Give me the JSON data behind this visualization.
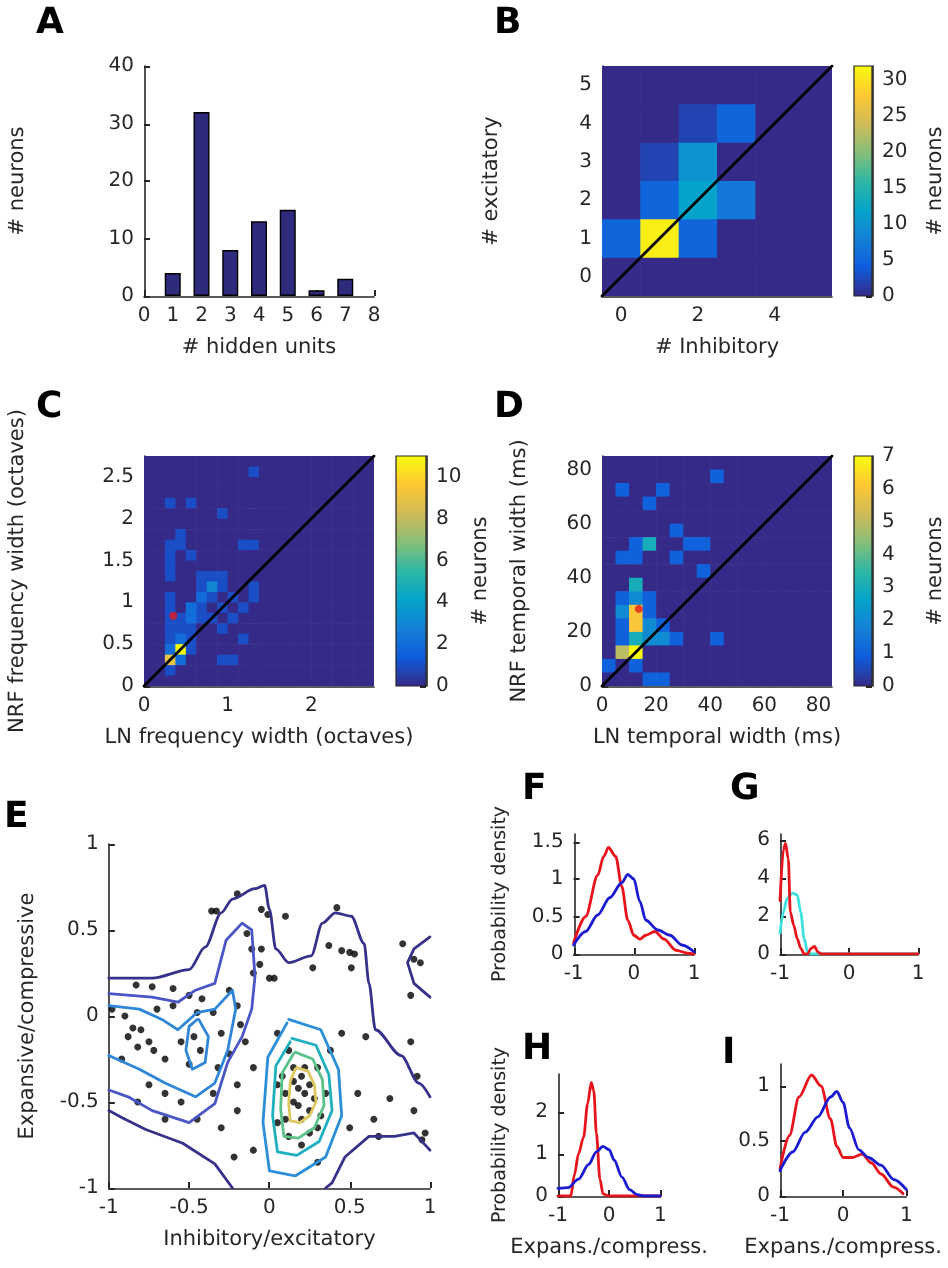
{
  "chart_data": [
    {
      "type": "bar",
      "title": "A",
      "xlabel": "# hidden units",
      "ylabel": "# neurons",
      "x": [
        1,
        2,
        3,
        4,
        5,
        6,
        7
      ],
      "values": [
        4,
        32,
        8,
        13,
        15,
        1,
        3
      ],
      "color": "#2e2b7d",
      "xlim": [
        0,
        8
      ],
      "xticks": [
        0,
        1,
        2,
        3,
        4,
        5,
        6,
        7,
        8
      ],
      "ylim": [
        0,
        40
      ],
      "yticks": [
        0,
        10,
        20,
        30,
        40
      ]
    },
    {
      "type": "heatmap",
      "title": "B",
      "xlabel": "# Inhibitory",
      "ylabel": "# excitatory",
      "clabel": "# neurons",
      "x": [
        0,
        1,
        2,
        3,
        4,
        5
      ],
      "xlim": [
        -0.5,
        5.5
      ],
      "xticks": [
        0,
        2,
        4
      ],
      "ylim": [
        -0.5,
        5.5
      ],
      "yticks": [
        0,
        1,
        2,
        3,
        4,
        5
      ],
      "clim": [
        0,
        32
      ],
      "cticks": [
        0,
        5,
        10,
        15,
        20,
        25,
        30
      ],
      "cells": [
        [
          0,
          0,
          0,
          0,
          0,
          0
        ],
        [
          0,
          0,
          2,
          5,
          0,
          0
        ],
        [
          0,
          2,
          10,
          0,
          0,
          0
        ],
        [
          0,
          5,
          12,
          7,
          0,
          0
        ],
        [
          5,
          31,
          5,
          0,
          0,
          0
        ],
        [
          0,
          0,
          0,
          0,
          0,
          0
        ]
      ],
      "series": [
        {
          "type": "line",
          "marker": "none",
          "color": "#000000",
          "x": [
            -0.5,
            5.5
          ],
          "values": [
            -0.5,
            5.5
          ]
        }
      ]
    },
    {
      "type": "heatmap",
      "title": "C",
      "xlabel": "LN frequency width (octaves)",
      "ylabel": "NRF frequency width (octaves)",
      "clabel": "# neurons",
      "x": [
        0.0625,
        0.1875,
        0.3125,
        0.4375,
        0.5625,
        0.6875,
        0.8125,
        0.9375,
        1.0625,
        1.1875,
        1.3125,
        1.4375,
        1.5625,
        1.6875,
        1.8125,
        1.9375,
        2.0625,
        2.1875,
        2.3125,
        2.4375,
        2.5625,
        2.6875
      ],
      "xlim": [
        0,
        2.75
      ],
      "xticks": [
        0,
        1,
        2
      ],
      "ylim": [
        0,
        2.75
      ],
      "yticks": [
        0,
        0.5,
        1,
        1.5,
        2,
        2.5
      ],
      "clim": [
        0,
        11
      ],
      "cticks": [
        0,
        2,
        4,
        6,
        8,
        10
      ],
      "cells": [
        [
          0,
          0,
          0,
          0,
          0,
          0,
          0,
          0,
          0,
          0,
          0,
          0,
          0,
          0,
          0,
          0,
          0,
          0,
          0,
          0,
          0,
          0
        ],
        [
          0,
          0,
          0,
          0,
          0,
          0,
          0,
          0,
          0,
          0,
          1,
          0,
          0,
          0,
          0,
          0,
          0,
          0,
          0,
          0,
          0,
          0
        ],
        [
          0,
          0,
          0,
          0,
          0,
          0,
          0,
          0,
          0,
          0,
          0,
          0,
          0,
          0,
          0,
          0,
          0,
          0,
          0,
          0,
          0,
          0
        ],
        [
          0,
          0,
          0,
          0,
          0,
          0,
          0,
          0,
          0,
          0,
          0,
          0,
          0,
          0,
          0,
          0,
          0,
          0,
          0,
          0,
          0,
          0
        ],
        [
          0,
          0,
          1,
          0,
          1,
          0,
          0,
          0,
          0,
          0,
          0,
          0,
          0,
          0,
          0,
          0,
          0,
          0,
          0,
          0,
          0,
          0
        ],
        [
          0,
          0,
          0,
          0,
          0,
          0,
          0,
          1,
          0,
          0,
          0,
          0,
          0,
          0,
          0,
          0,
          0,
          0,
          0,
          0,
          0,
          0
        ],
        [
          0,
          0,
          0,
          0,
          0,
          0,
          0,
          0,
          0,
          0,
          0,
          0,
          0,
          0,
          0,
          0,
          0,
          0,
          0,
          0,
          0,
          0
        ],
        [
          0,
          0,
          0,
          1,
          0,
          0,
          0,
          0,
          0,
          0,
          0,
          0,
          0,
          0,
          0,
          0,
          0,
          0,
          0,
          0,
          0,
          0
        ],
        [
          0,
          0,
          1,
          1,
          0,
          0,
          0,
          0,
          0,
          1,
          1,
          0,
          0,
          0,
          0,
          0,
          0,
          0,
          0,
          0,
          0,
          0
        ],
        [
          0,
          0,
          1,
          0,
          1,
          0,
          0,
          0,
          0,
          0,
          0,
          0,
          0,
          0,
          0,
          0,
          0,
          0,
          0,
          0,
          0,
          0
        ],
        [
          0,
          0,
          1,
          0,
          0,
          0,
          0,
          0,
          0,
          0,
          0,
          0,
          0,
          0,
          0,
          0,
          0,
          0,
          0,
          0,
          0,
          0
        ],
        [
          0,
          0,
          1,
          0,
          0,
          1,
          1,
          1,
          0,
          0,
          0,
          0,
          0,
          0,
          0,
          0,
          0,
          0,
          0,
          0,
          0,
          0
        ],
        [
          0,
          0,
          0,
          0,
          0,
          1,
          3,
          1,
          0,
          0,
          1,
          0,
          0,
          0,
          0,
          0,
          0,
          0,
          0,
          0,
          0,
          0
        ],
        [
          0,
          0,
          1,
          0,
          0,
          2,
          1,
          0,
          1,
          0,
          1,
          0,
          0,
          0,
          0,
          0,
          0,
          0,
          0,
          0,
          0,
          0
        ],
        [
          0,
          0,
          1,
          0,
          2,
          1,
          0,
          1,
          0,
          1,
          0,
          0,
          0,
          0,
          0,
          0,
          0,
          0,
          0,
          0,
          0,
          0
        ],
        [
          0,
          0,
          1,
          1,
          2,
          1,
          1,
          0,
          1,
          0,
          0,
          0,
          0,
          0,
          0,
          0,
          0,
          0,
          0,
          0,
          0,
          0
        ],
        [
          0,
          0,
          1,
          1,
          1,
          0,
          0,
          1,
          0,
          0,
          0,
          0,
          0,
          0,
          0,
          0,
          0,
          0,
          0,
          0,
          0,
          0
        ],
        [
          0,
          0,
          1,
          2,
          1,
          0,
          0,
          0,
          0,
          1,
          0,
          0,
          0,
          0,
          0,
          0,
          0,
          0,
          0,
          0,
          0,
          0
        ],
        [
          0,
          0,
          2,
          11,
          1,
          0,
          0,
          0,
          0,
          0,
          0,
          0,
          0,
          0,
          0,
          0,
          0,
          0,
          0,
          0,
          0,
          0
        ],
        [
          0,
          0,
          9,
          2,
          0,
          0,
          0,
          1,
          1,
          0,
          0,
          0,
          0,
          0,
          0,
          0,
          0,
          0,
          0,
          0,
          0,
          0
        ],
        [
          0,
          0,
          1,
          0,
          0,
          0,
          0,
          0,
          0,
          0,
          0,
          0,
          0,
          0,
          0,
          0,
          0,
          0,
          0,
          0,
          0,
          0
        ],
        [
          0,
          0,
          0,
          0,
          0,
          0,
          0,
          0,
          0,
          0,
          0,
          0,
          0,
          0,
          0,
          0,
          0,
          0,
          0,
          0,
          0,
          0
        ]
      ],
      "series": [
        {
          "type": "line",
          "marker": "none",
          "color": "#000000",
          "x": [
            0,
            2.75
          ],
          "values": [
            0,
            2.75
          ]
        },
        {
          "type": "scatter",
          "marker": "circle",
          "color": "#e41a1c",
          "x": [
            0.35
          ],
          "values": [
            0.84
          ]
        }
      ]
    },
    {
      "type": "heatmap",
      "title": "D",
      "xlabel": "LN temporal width (ms)",
      "ylabel": "NRF temporal width (ms)",
      "clabel": "# neurons",
      "x": [
        2.5,
        7.5,
        12.5,
        17.5,
        22.5,
        27.5,
        32.5,
        37.5,
        42.5,
        47.5,
        52.5,
        57.5,
        62.5,
        67.5,
        72.5,
        77.5,
        82.5
      ],
      "xlim": [
        0,
        85
      ],
      "xticks": [
        0,
        20,
        40,
        60,
        80
      ],
      "ylim": [
        0,
        85
      ],
      "yticks": [
        0,
        20,
        40,
        60,
        80
      ],
      "clim": [
        0,
        7
      ],
      "cticks": [
        0,
        1,
        2,
        3,
        4,
        5,
        6,
        7
      ],
      "cells": [
        [
          0,
          0,
          0,
          0,
          0,
          0,
          0,
          0,
          0,
          0,
          0,
          0,
          0,
          0,
          0,
          0,
          0
        ],
        [
          0,
          0,
          0,
          0,
          0,
          0,
          0,
          0,
          1,
          0,
          0,
          0,
          0,
          0,
          0,
          0,
          0
        ],
        [
          0,
          1,
          0,
          0,
          1,
          0,
          0,
          0,
          0,
          0,
          0,
          0,
          0,
          0,
          0,
          0,
          0
        ],
        [
          0,
          0,
          0,
          1,
          0,
          0,
          0,
          0,
          0,
          0,
          0,
          0,
          0,
          0,
          0,
          0,
          0
        ],
        [
          0,
          0,
          0,
          0,
          0,
          0,
          0,
          0,
          0,
          0,
          0,
          0,
          0,
          0,
          0,
          0,
          0
        ],
        [
          0,
          0,
          0,
          0,
          0,
          1,
          0,
          0,
          0,
          0,
          0,
          0,
          0,
          0,
          0,
          0,
          0
        ],
        [
          0,
          0,
          1,
          3,
          0,
          0,
          1,
          1,
          0,
          0,
          0,
          0,
          0,
          0,
          0,
          0,
          0
        ],
        [
          0,
          1,
          1,
          0,
          0,
          1,
          0,
          0,
          0,
          0,
          0,
          0,
          0,
          0,
          0,
          0,
          0
        ],
        [
          0,
          0,
          0,
          0,
          0,
          0,
          0,
          1,
          0,
          0,
          0,
          0,
          0,
          0,
          0,
          0,
          0
        ],
        [
          0,
          0,
          3,
          0,
          0,
          0,
          0,
          0,
          0,
          0,
          0,
          0,
          0,
          0,
          0,
          0,
          0
        ],
        [
          0,
          1,
          2,
          1,
          0,
          0,
          0,
          0,
          0,
          0,
          0,
          0,
          0,
          0,
          0,
          0,
          0
        ],
        [
          0,
          2,
          6,
          1,
          0,
          0,
          0,
          0,
          0,
          0,
          0,
          0,
          0,
          0,
          0,
          0,
          0
        ],
        [
          0,
          1,
          6,
          2,
          1,
          0,
          0,
          0,
          0,
          0,
          0,
          0,
          0,
          0,
          0,
          0,
          0
        ],
        [
          0,
          1,
          3,
          2,
          2,
          1,
          0,
          0,
          1,
          0,
          0,
          0,
          0,
          0,
          0,
          0,
          0
        ],
        [
          0,
          5,
          7,
          0,
          0,
          0,
          0,
          0,
          0,
          0,
          0,
          0,
          0,
          0,
          0,
          0,
          0
        ],
        [
          1,
          0,
          1,
          0,
          0,
          0,
          0,
          0,
          0,
          0,
          0,
          0,
          0,
          0,
          0,
          0,
          0
        ],
        [
          0,
          0,
          0,
          1,
          1,
          0,
          0,
          0,
          0,
          0,
          0,
          0,
          0,
          0,
          0,
          0,
          0
        ]
      ],
      "series": [
        {
          "type": "line",
          "marker": "none",
          "color": "#000000",
          "x": [
            0,
            85
          ],
          "values": [
            0,
            85
          ]
        },
        {
          "type": "scatter",
          "marker": "circle",
          "color": "#e41a1c",
          "x": [
            13.6
          ],
          "values": [
            28.5
          ]
        }
      ]
    },
    {
      "type": "scatter",
      "title": "E",
      "xlabel": "Inhibitory/excitatory",
      "ylabel": "Expansive/compressive",
      "xlim": [
        -1,
        1
      ],
      "xticks": [
        -1,
        -0.5,
        0,
        0.5,
        1
      ],
      "ylim": [
        -1,
        1
      ],
      "yticks": [
        -1,
        -0.5,
        0,
        0.5,
        1
      ],
      "marker": "circle",
      "series": [
        {
          "type": "line",
          "marker": "none",
          "color": "#36318a",
          "x": [
            -1,
            -0.73,
            -0.5,
            -0.4,
            -0.3,
            -0.23,
            -0.09,
            -0.03,
            0,
            0.04,
            0.12,
            0.26,
            0.33,
            0.41,
            0.51,
            0.59,
            0.62,
            0.66,
            0.82,
            0.93,
            1
          ],
          "values": [
            0.22,
            0.22,
            0.27,
            0.4,
            0.6,
            0.68,
            0.74,
            0.76,
            0.62,
            0.39,
            0.31,
            0.35,
            0.54,
            0.6,
            0.58,
            0.42,
            0.19,
            -0.08,
            -0.23,
            -0.39,
            -0.47
          ]
        },
        {
          "type": "line",
          "marker": "none",
          "color": "#36318a",
          "x": [
            1,
            0.9,
            0.78,
            0.62,
            0.47,
            0.39,
            0.35
          ],
          "values": [
            -0.78,
            -0.68,
            -0.7,
            -0.7,
            -0.82,
            -0.97,
            -1
          ]
        },
        {
          "type": "line",
          "marker": "none",
          "color": "#36318a",
          "x": [
            -0.23,
            -0.34,
            -0.54,
            -0.77,
            -0.92,
            -1
          ],
          "values": [
            -1,
            -0.86,
            -0.74,
            -0.66,
            -0.59,
            -0.55
          ]
        },
        {
          "type": "line",
          "marker": "none",
          "color": "#36318a",
          "x": [
            1,
            0.9,
            0.86,
            0.9,
            1
          ],
          "values": [
            0.46,
            0.39,
            0.31,
            0.19,
            0.11
          ]
        },
        {
          "type": "line",
          "marker": "none",
          "color": "#4a56c6",
          "x": [
            -1,
            -0.73,
            -0.57,
            -0.46,
            -0.34,
            -0.27,
            -0.17,
            -0.11,
            -0.09,
            -0.11,
            -0.17,
            -0.26,
            -0.34,
            -0.5,
            -0.73,
            -0.88,
            -1
          ],
          "values": [
            0.13,
            0.11,
            0.08,
            0.15,
            0.19,
            0.44,
            0.54,
            0.5,
            0.23,
            0.04,
            -0.12,
            -0.27,
            -0.51,
            -0.62,
            -0.55,
            -0.47,
            -0.43
          ]
        },
        {
          "type": "line",
          "marker": "none",
          "color": "#2e86d6",
          "x": [
            -1,
            -0.81,
            -0.67,
            -0.57,
            -0.45,
            -0.34,
            -0.23,
            -0.21,
            -0.26,
            -0.34,
            -0.46,
            -0.65,
            -0.81,
            -1
          ],
          "values": [
            0.06,
            0.04,
            -0.02,
            -0.08,
            0.02,
            0.04,
            0.15,
            0.04,
            -0.2,
            -0.39,
            -0.47,
            -0.39,
            -0.31,
            -0.23
          ]
        },
        {
          "type": "line",
          "marker": "none",
          "color": "#2e86d6",
          "x": [
            -0.44,
            -0.38,
            -0.4,
            -0.48,
            -0.52,
            -0.5,
            -0.45
          ],
          "values": [
            -0.02,
            -0.12,
            -0.27,
            -0.31,
            -0.2,
            -0.06,
            -0.02
          ]
        },
        {
          "type": "line",
          "marker": "none",
          "color": "#2b8fd8",
          "x": [
            0.12,
            0.32,
            0.43,
            0.45,
            0.35,
            0.16,
            0,
            -0.04,
            -0.01,
            0.11
          ],
          "values": [
            -0.02,
            -0.08,
            -0.31,
            -0.58,
            -0.82,
            -0.93,
            -0.9,
            -0.62,
            -0.24,
            -0.04
          ]
        },
        {
          "type": "line",
          "marker": "none",
          "color": "#1fb0c0",
          "x": [
            0.14,
            0.29,
            0.37,
            0.39,
            0.31,
            0.17,
            0.05,
            0.02,
            0.04,
            0.13
          ],
          "values": [
            -0.13,
            -0.17,
            -0.34,
            -0.55,
            -0.73,
            -0.81,
            -0.79,
            -0.58,
            -0.29,
            -0.15
          ]
        },
        {
          "type": "line",
          "marker": "none",
          "color": "#5bc28a",
          "x": [
            0.16,
            0.27,
            0.33,
            0.34,
            0.28,
            0.18,
            0.09,
            0.07,
            0.08,
            0.15
          ],
          "values": [
            -0.21,
            -0.25,
            -0.37,
            -0.52,
            -0.65,
            -0.71,
            -0.7,
            -0.54,
            -0.33,
            -0.22
          ]
        },
        {
          "type": "line",
          "marker": "none",
          "color": "#e0c860",
          "x": [
            0.17,
            0.24,
            0.28,
            0.29,
            0.25,
            0.19,
            0.13,
            0.12,
            0.13,
            0.16
          ],
          "values": [
            -0.3,
            -0.32,
            -0.4,
            -0.5,
            -0.58,
            -0.62,
            -0.61,
            -0.51,
            -0.38,
            -0.31
          ]
        },
        {
          "type": "scatter",
          "color": "#000000",
          "x": [
            -0.36,
            -0.33,
            -0.2,
            -0.05,
            -0.01,
            0.1,
            0.42,
            0.37,
            0.45,
            0.5,
            0.53,
            0.51,
            0.27,
            0.83,
            0.9,
            0.94,
            0.88,
            -0.14,
            -0.11,
            -0.05,
            -0.06,
            -0.1,
            0,
            0.03,
            -0.83,
            -0.73,
            -0.6,
            -0.5,
            -0.42,
            -0.25,
            -0.2,
            -0.35,
            -0.45,
            -0.6,
            -0.7,
            -0.98,
            -0.9,
            -0.85,
            -0.8,
            -0.75,
            -0.88,
            -0.82,
            -0.72,
            -0.65,
            -0.55,
            -0.47,
            -0.43,
            -0.5,
            -0.3,
            -0.25,
            -0.32,
            -0.18,
            -0.15,
            -0.1,
            -0.2,
            -0.35,
            -0.55,
            -0.65,
            -0.75,
            -0.82,
            -0.92,
            -0.65,
            -0.45,
            -0.3,
            -0.2,
            -0.1,
            -0.22,
            0.05,
            0.12,
            0.15,
            0.2,
            0.25,
            0.18,
            0.22,
            0.15,
            0.25,
            0.2,
            0.1,
            0.3,
            0.35,
            0.12,
            0.2,
            0.3,
            0.05,
            0.08,
            0.38,
            0.45,
            0.55,
            0.65,
            0.68,
            0.75,
            0.9,
            0.95,
            0.97,
            0.88,
            0.92,
            0.6,
            0.3,
            0.5,
            0.15,
            0.22,
            0.28,
            0.18,
            0.1,
            0.25,
            0.05,
            0.32
          ],
          "values": [
            0.61,
            0.61,
            0.71,
            0.62,
            0.59,
            0.58,
            0.63,
            0.41,
            0.38,
            0.37,
            0.36,
            0.28,
            0.28,
            0.42,
            0.33,
            0.31,
            0.12,
            0.48,
            0.39,
            0.39,
            0.3,
            0.25,
            0.22,
            0.22,
            0.18,
            0.17,
            0.16,
            0.12,
            0.1,
            0.15,
            0.06,
            0.02,
            0.02,
            0.06,
            0.04,
            0.04,
            0,
            -0.07,
            -0.08,
            -0.15,
            -0.12,
            -0.18,
            -0.2,
            -0.25,
            -0.15,
            -0.12,
            -0.2,
            -0.28,
            -0.1,
            -0.22,
            -0.3,
            -0.05,
            -0.15,
            -0.3,
            -0.4,
            -0.45,
            -0.5,
            -0.45,
            -0.4,
            -0.5,
            -0.25,
            -0.6,
            -0.6,
            -0.65,
            -0.55,
            -0.78,
            -0.82,
            -0.1,
            -0.2,
            -0.3,
            -0.35,
            -0.4,
            -0.42,
            -0.45,
            -0.5,
            -0.55,
            -0.6,
            -0.45,
            -0.3,
            -0.45,
            -0.7,
            -0.75,
            -0.65,
            -0.62,
            -0.35,
            -0.2,
            -0.1,
            -0.45,
            -0.6,
            -0.7,
            -0.48,
            -0.55,
            -0.72,
            -0.68,
            -0.15,
            -0.35,
            -0.12,
            -0.85,
            -0.65,
            -0.38,
            -0.3,
            -0.48,
            -0.52,
            -0.6,
            -0.68,
            -0.4,
            -0.58
          ]
        }
      ]
    },
    {
      "type": "line",
      "title": "F",
      "ylabel": "Probability density",
      "xlim": [
        -1,
        1
      ],
      "xticks": [
        -1,
        0,
        1
      ],
      "ylim": [
        0,
        1.6
      ],
      "yticks": [
        0,
        0.5,
        1,
        1.5
      ],
      "marker": "none",
      "series": [
        {
          "color": "#e8141c",
          "x": [
            -1,
            -0.8,
            -0.6,
            -0.5,
            -0.42,
            -0.3,
            -0.2,
            -0.1,
            0,
            0.1,
            0.2,
            0.35,
            0.5,
            0.7,
            0.9,
            1
          ],
          "values": [
            0.15,
            0.5,
            1.05,
            1.3,
            1.42,
            1.3,
            0.9,
            0.45,
            0.25,
            0.2,
            0.25,
            0.3,
            0.2,
            0.05,
            0.01,
            0
          ]
        },
        {
          "color": "#1a1ad0",
          "x": [
            -1,
            -0.8,
            -0.6,
            -0.4,
            -0.2,
            -0.1,
            0,
            0.1,
            0.2,
            0.4,
            0.6,
            0.8,
            1
          ],
          "values": [
            0.12,
            0.3,
            0.52,
            0.75,
            0.95,
            1.06,
            1,
            0.7,
            0.45,
            0.32,
            0.25,
            0.12,
            0.03
          ]
        }
      ]
    },
    {
      "type": "line",
      "title": "G",
      "xlim": [
        -1,
        1
      ],
      "xticks": [
        -1,
        0,
        1
      ],
      "ylim": [
        0,
        6.3
      ],
      "yticks": [
        0,
        2,
        4,
        6
      ],
      "marker": "none",
      "series": [
        {
          "color": "#3ee0e0",
          "x": [
            -1,
            -0.95,
            -0.9,
            -0.82,
            -0.75,
            -0.7,
            -0.65,
            -0.6,
            -0.55,
            1
          ],
          "values": [
            1.1,
            2.2,
            2.9,
            3.2,
            3.1,
            2.2,
            0.8,
            0.1,
            0,
            0
          ]
        },
        {
          "color": "#e8141c",
          "x": [
            -1,
            -0.95,
            -0.92,
            -0.88,
            -0.85,
            -0.8,
            -0.75,
            -0.7,
            -0.65,
            -0.6,
            -0.55,
            -0.5,
            -0.45,
            -0.4,
            1
          ],
          "values": [
            2.8,
            5.5,
            5.8,
            5,
            2.2,
            1.5,
            0.8,
            0.3,
            0,
            0,
            0.3,
            0.4,
            0.1,
            0,
            0
          ]
        }
      ]
    },
    {
      "type": "line",
      "title": "H",
      "xlabel": "Expans./compress.",
      "ylabel": "Probability density",
      "xlim": [
        -1,
        1
      ],
      "xticks": [
        -1,
        0,
        1
      ],
      "ylim": [
        0,
        2.9
      ],
      "yticks": [
        0,
        1,
        2
      ],
      "marker": "none",
      "series": [
        {
          "color": "#e8141c",
          "x": [
            -1,
            -0.75,
            -0.68,
            -0.6,
            -0.5,
            -0.42,
            -0.35,
            -0.3,
            -0.25,
            -0.18,
            -0.12,
            0,
            1
          ],
          "values": [
            0,
            0,
            0.5,
            1,
            1.4,
            2.2,
            2.7,
            2.5,
            1.5,
            0.4,
            0.05,
            0,
            0
          ]
        },
        {
          "color": "#1a1ad0",
          "x": [
            -1,
            -0.8,
            -0.6,
            -0.4,
            -0.25,
            -0.12,
            0,
            0.1,
            0.25,
            0.4,
            0.55,
            0.7,
            1
          ],
          "values": [
            0.18,
            0.2,
            0.4,
            0.75,
            1.05,
            1.18,
            1.1,
            0.85,
            0.45,
            0.15,
            0.03,
            0,
            0
          ]
        }
      ]
    },
    {
      "type": "line",
      "title": "I",
      "xlabel": "Expans./compress.",
      "xlim": [
        -1,
        1
      ],
      "xticks": [
        -1,
        0,
        1
      ],
      "ylim": [
        0,
        1.2
      ],
      "yticks": [
        0,
        0.5,
        1
      ],
      "marker": "none",
      "series": [
        {
          "color": "#e8141c",
          "x": [
            -1,
            -0.85,
            -0.7,
            -0.5,
            -0.35,
            -0.2,
            -0.1,
            0,
            0.15,
            0.3,
            0.45,
            0.6,
            0.8,
            0.95
          ],
          "values": [
            0.25,
            0.55,
            0.9,
            1.1,
            1,
            0.7,
            0.45,
            0.35,
            0.35,
            0.38,
            0.3,
            0.2,
            0.08,
            0.02
          ]
        },
        {
          "color": "#1a1ad0",
          "x": [
            -1,
            -0.8,
            -0.6,
            -0.4,
            -0.2,
            -0.1,
            0,
            0.1,
            0.25,
            0.4,
            0.6,
            0.8,
            1
          ],
          "values": [
            0.23,
            0.4,
            0.58,
            0.72,
            0.9,
            0.95,
            0.85,
            0.62,
            0.42,
            0.35,
            0.28,
            0.15,
            0.06
          ]
        }
      ]
    }
  ]
}
